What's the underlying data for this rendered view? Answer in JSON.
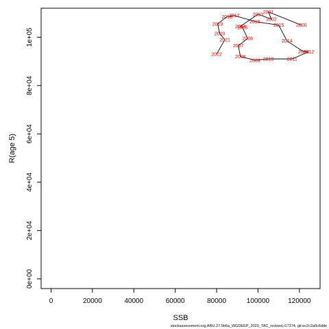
{
  "chart_data": {
    "type": "line",
    "xlabel": "SSB",
    "ylabel": "R(age 5)",
    "xlim": [
      -4800,
      130000
    ],
    "ylim": [
      -4000,
      112000
    ],
    "x_ticks": [
      0,
      20000,
      40000,
      60000,
      80000,
      100000,
      120000
    ],
    "y_ticks": [
      0,
      20000,
      40000,
      60000,
      80000,
      100000
    ],
    "x_tick_labels": [
      "0",
      "20000",
      "40000",
      "60000",
      "80000",
      "100000",
      "120000"
    ],
    "y_tick_labels": [
      "0e+00",
      "2e+04",
      "4e+04",
      "6e+04",
      "8e+04",
      "1e+05"
    ],
    "line_color": "#000000",
    "label_color": "#ff0000",
    "points": [
      {
        "year": "2000",
        "ssb": 121000,
        "rec": 105000
      },
      {
        "year": "2001",
        "ssb": 105000,
        "rec": 110500
      },
      {
        "year": "2002",
        "ssb": 106500,
        "rec": 107500
      },
      {
        "year": "2003",
        "ssb": 100000,
        "rec": 109500
      },
      {
        "year": "2004",
        "ssb": 91500,
        "rec": 104500
      },
      {
        "year": "2005",
        "ssb": 92500,
        "rec": 104000
      },
      {
        "year": "2006",
        "ssb": 95000,
        "rec": 99500
      },
      {
        "year": "2007",
        "ssb": 90500,
        "rec": 96500
      },
      {
        "year": "2008",
        "ssb": 91500,
        "rec": 92000
      },
      {
        "year": "2009",
        "ssb": 98500,
        "rec": 90500
      },
      {
        "year": "2010",
        "ssb": 105000,
        "rec": 91000
      },
      {
        "year": "2011",
        "ssb": 116500,
        "rec": 91000
      },
      {
        "year": "2012",
        "ssb": 124500,
        "rec": 94000
      },
      {
        "year": "2013",
        "ssb": 122000,
        "rec": 94000
      },
      {
        "year": "2014",
        "ssb": 114000,
        "rec": 98500
      },
      {
        "year": "2015",
        "ssb": 110000,
        "rec": 105000
      },
      {
        "year": "2016",
        "ssb": 98500,
        "rec": 106500
      },
      {
        "year": "2017",
        "ssb": 88500,
        "rec": 109000
      },
      {
        "year": "2018",
        "ssb": 85000,
        "rec": 108500
      },
      {
        "year": "2019",
        "ssb": 80500,
        "rec": 105500
      },
      {
        "year": "2020",
        "ssb": 81500,
        "rec": 101500
      },
      {
        "year": "2021",
        "ssb": 84000,
        "rec": 99000
      },
      {
        "year": "2022",
        "ssb": 80000,
        "rec": 93000
      }
    ]
  },
  "footer": {
    "source": "stockassessment.org,ARU.27.5b6a_WGDEEP_2023_TAC_revised,r17374, git:ec2c2a0c6dde"
  }
}
